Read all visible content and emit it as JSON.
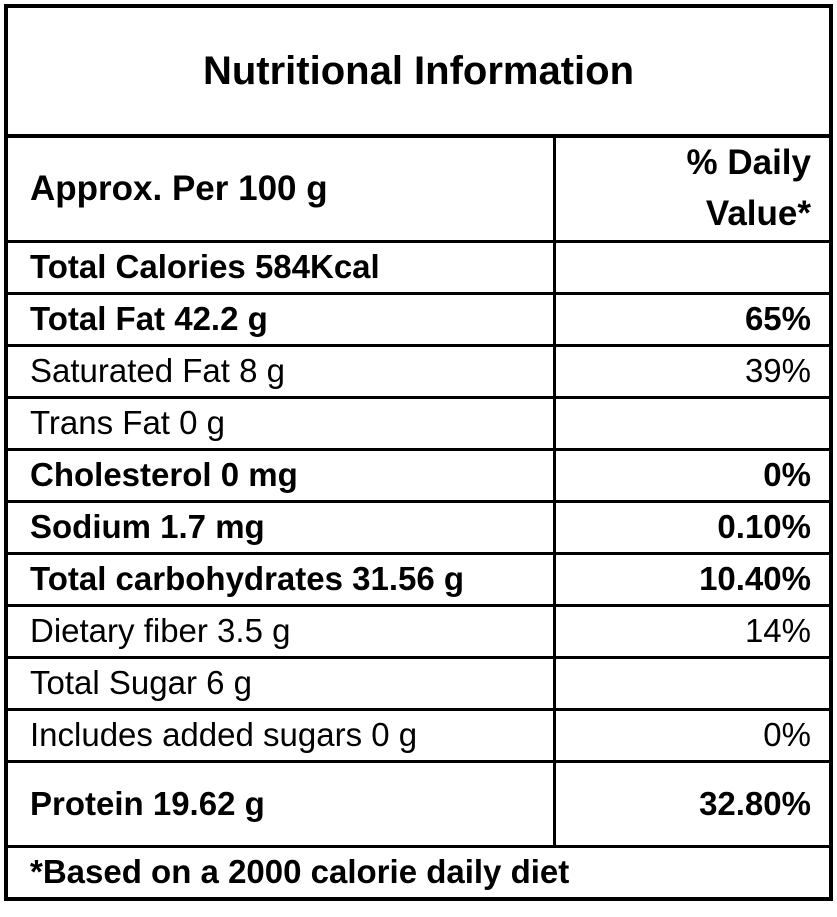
{
  "title": "Nutritional Information",
  "header": {
    "label": "Approx. Per 100 g",
    "value": "% Daily Value*"
  },
  "rows": [
    {
      "label": "Total Calories 584Kcal",
      "value": "",
      "bold": true
    },
    {
      "label": "Total Fat 42.2 g",
      "value": "65%",
      "bold": true
    },
    {
      "label": "Saturated Fat 8 g",
      "value": "39%",
      "bold": false
    },
    {
      "label": "Trans Fat 0 g",
      "value": "",
      "bold": false
    },
    {
      "label": "Cholesterol 0 mg",
      "value": "0%",
      "bold": true
    },
    {
      "label": "Sodium 1.7 mg",
      "value": "0.10%",
      "bold": true
    },
    {
      "label": "Total carbohydrates 31.56 g",
      "value": "10.40%",
      "bold": true
    },
    {
      "label": "Dietary fiber 3.5 g",
      "value": "14%",
      "bold": false
    },
    {
      "label": "Total Sugar 6 g",
      "value": "",
      "bold": false
    },
    {
      "label": "Includes added sugars 0 g",
      "value": "0%",
      "bold": false
    },
    {
      "label": "Protein 19.62 g",
      "value": "32.80%",
      "bold": true
    }
  ],
  "footer": "*Based on a 2000 calorie daily diet",
  "colors": {
    "border": "#000000",
    "text": "#000000",
    "background": "#ffffff"
  }
}
